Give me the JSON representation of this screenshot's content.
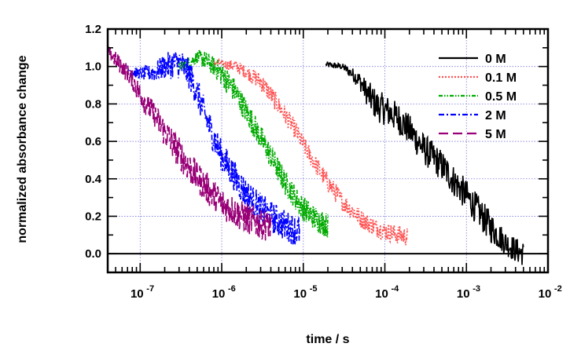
{
  "chart_data": {
    "type": "line",
    "title": "",
    "xlabel": "time / s",
    "ylabel": "normalized absorbance change",
    "x_scale": "log",
    "xlim": [
      4e-08,
      0.01
    ],
    "ylim": [
      -0.1,
      1.2
    ],
    "x_tick_labels": [
      {
        "value": 1e-07,
        "base": "10",
        "exp": "-7"
      },
      {
        "value": 1e-06,
        "base": "10",
        "exp": "-6"
      },
      {
        "value": 1e-05,
        "base": "10",
        "exp": "-5"
      },
      {
        "value": 0.0001,
        "base": "10",
        "exp": "-4"
      },
      {
        "value": 0.001,
        "base": "10",
        "exp": "-3"
      },
      {
        "value": 0.01,
        "base": "10",
        "exp": "-2"
      }
    ],
    "y_ticks": [
      0.0,
      0.2,
      0.4,
      0.6,
      0.8,
      1.0,
      1.2
    ],
    "y_tick_labels": [
      "0.0",
      "0.2",
      "0.4",
      "0.6",
      "0.8",
      "1.0",
      "1.2"
    ],
    "grid": true,
    "legend_position": "top-right",
    "baseline": 0.0,
    "series": [
      {
        "name": "0 M",
        "color": "#000000",
        "dash": "solid",
        "t": [
          1.9e-05,
          3e-05,
          4e-05,
          5e-05,
          6e-05,
          7e-05,
          8e-05,
          0.0001,
          0.00015,
          0.0002,
          0.0003,
          0.0005,
          0.0007,
          0.001,
          0.0015,
          0.002,
          0.003,
          0.004,
          0.005
        ],
        "y": [
          1.01,
          1.0,
          0.96,
          0.92,
          0.86,
          0.82,
          0.79,
          0.77,
          0.72,
          0.66,
          0.56,
          0.47,
          0.39,
          0.31,
          0.21,
          0.14,
          0.06,
          0.02,
          0.0
        ],
        "noise": [
          0.01,
          0.01,
          0.02,
          0.03,
          0.04,
          0.05,
          0.05,
          0.05,
          0.05,
          0.05,
          0.05,
          0.05,
          0.05,
          0.05,
          0.05,
          0.05,
          0.04,
          0.04,
          0.04
        ]
      },
      {
        "name": "0.1 M",
        "color": "#ff5050",
        "dash": "dotted",
        "t": [
          8e-07,
          1.5e-06,
          2e-06,
          3e-06,
          4e-06,
          6e-06,
          8e-06,
          1e-05,
          1.5e-05,
          2e-05,
          3e-05,
          5e-05,
          7e-05,
          0.0001,
          0.00015,
          0.00019
        ],
        "y": [
          1.02,
          1.0,
          0.97,
          0.92,
          0.85,
          0.74,
          0.66,
          0.58,
          0.46,
          0.38,
          0.28,
          0.19,
          0.15,
          0.12,
          0.1,
          0.09
        ],
        "noise": [
          0.01,
          0.02,
          0.02,
          0.03,
          0.03,
          0.03,
          0.03,
          0.03,
          0.03,
          0.03,
          0.03,
          0.03,
          0.03,
          0.03,
          0.03,
          0.03
        ]
      },
      {
        "name": "0.5 M",
        "color": "#00aa00",
        "dash": "dash-dot-dot",
        "t": [
          3e-07,
          4e-07,
          5e-07,
          6e-07,
          8e-07,
          1e-06,
          1.5e-06,
          2e-06,
          3e-06,
          4e-06,
          6e-06,
          8e-06,
          1e-05,
          1.5e-05,
          2e-05
        ],
        "y": [
          1.0,
          1.02,
          1.05,
          1.04,
          1.0,
          0.96,
          0.86,
          0.76,
          0.62,
          0.52,
          0.38,
          0.3,
          0.24,
          0.18,
          0.15
        ],
        "noise": [
          0.02,
          0.02,
          0.02,
          0.03,
          0.03,
          0.04,
          0.04,
          0.04,
          0.04,
          0.04,
          0.04,
          0.04,
          0.04,
          0.04,
          0.04
        ]
      },
      {
        "name": "2 M",
        "color": "#0000ff",
        "dash": "dash-dot",
        "t": [
          7e-08,
          1e-07,
          1.5e-07,
          2e-07,
          3e-07,
          4e-07,
          5e-07,
          6e-07,
          8e-07,
          1e-06,
          1.5e-06,
          2e-06,
          3e-06,
          4e-06,
          6e-06,
          9e-06
        ],
        "y": [
          0.98,
          0.96,
          0.97,
          1.0,
          1.02,
          0.96,
          0.86,
          0.76,
          0.62,
          0.52,
          0.4,
          0.32,
          0.24,
          0.2,
          0.15,
          0.12
        ],
        "noise": [
          0.02,
          0.02,
          0.03,
          0.04,
          0.05,
          0.05,
          0.05,
          0.05,
          0.05,
          0.05,
          0.05,
          0.05,
          0.05,
          0.05,
          0.05,
          0.05
        ]
      },
      {
        "name": "5 M",
        "color": "#990077",
        "dash": "long-dash",
        "t": [
          4e-08,
          6e-08,
          8e-08,
          1e-07,
          1.5e-07,
          2e-07,
          3e-07,
          4e-07,
          6e-07,
          8e-07,
          1e-06,
          1.5e-06,
          2e-06,
          3e-06,
          4e-06
        ],
        "y": [
          1.08,
          1.0,
          0.93,
          0.85,
          0.74,
          0.65,
          0.54,
          0.46,
          0.37,
          0.31,
          0.27,
          0.22,
          0.19,
          0.16,
          0.15
        ],
        "noise": [
          0.02,
          0.03,
          0.03,
          0.04,
          0.04,
          0.05,
          0.05,
          0.05,
          0.05,
          0.05,
          0.05,
          0.05,
          0.05,
          0.05,
          0.05
        ]
      }
    ]
  }
}
